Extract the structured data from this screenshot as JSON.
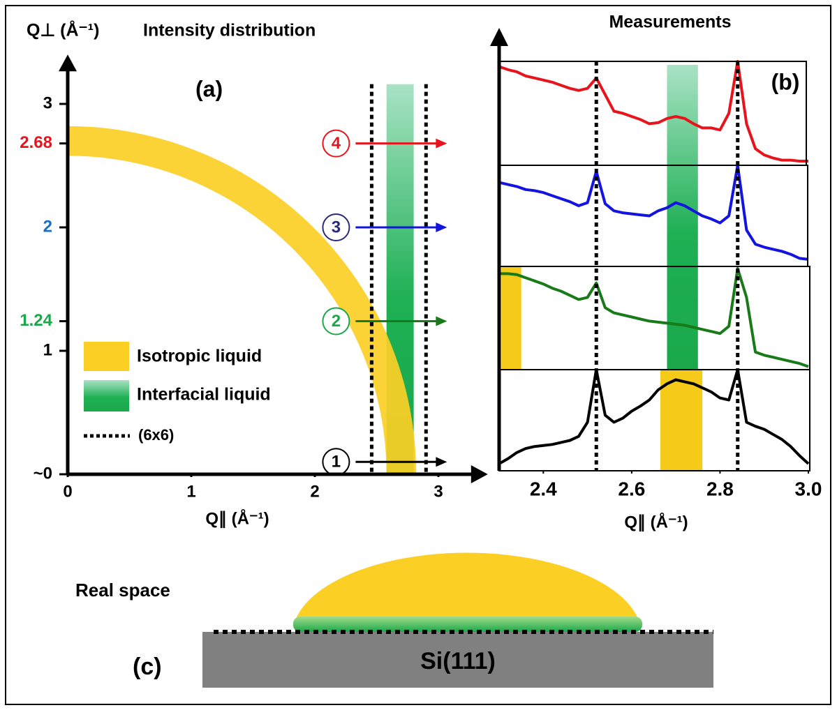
{
  "panel_a": {
    "title": "Intensity distribution",
    "label": "(a)",
    "y_label": "Q⊥ (Å⁻¹)",
    "x_label": "Q∥ (Å⁻¹)",
    "xlim": [
      0,
      3.4
    ],
    "ylim": [
      0,
      3.4
    ],
    "xticks": [
      0,
      1,
      2,
      3
    ],
    "yticks": [
      {
        "value": 0,
        "label": "~0"
      },
      1,
      1.24,
      2,
      2.68,
      3
    ],
    "ytick_colors": [
      "#000000",
      "#000000",
      "#1aa84a",
      "#1a6fc0",
      "#e8141c",
      "#000000"
    ],
    "ring": {
      "inner": 2.58,
      "outer": 2.82,
      "color": "#fccf25"
    },
    "interfacial_band": {
      "xmin": 2.58,
      "xmax": 2.8,
      "ymax": 3.16
    },
    "dotted_lines": [
      2.46,
      2.9
    ],
    "dotted_ymax": 3.16,
    "arrows": [
      {
        "label": "1",
        "y": 0.1,
        "color": "#000000",
        "circle": "#000000"
      },
      {
        "label": "2",
        "y": 1.24,
        "color": "#187a18",
        "circle": "#1aa84a"
      },
      {
        "label": "3",
        "y": 2,
        "color": "#1414e0",
        "circle": "#2a2a7a"
      },
      {
        "label": "4",
        "y": 2.68,
        "color": "#e8141c",
        "circle": "#e8141c"
      }
    ],
    "arrow_xlim": [
      2.33,
      3.07
    ],
    "legend": [
      "Isotropic liquid",
      "Interfacial liquid",
      "(6x6)"
    ]
  },
  "panel_b": {
    "title": "Measurements",
    "label": "(b)",
    "x_label": "Q∥ (Å⁻¹)",
    "xlim": [
      2.3,
      3.0
    ],
    "ylim": [
      0,
      100
    ],
    "xticks": [
      2.4,
      2.6,
      2.8,
      {
        "value": 3.0,
        "label": "3.0"
      }
    ],
    "dotted_lines": [
      2.52,
      2.84
    ],
    "interfacial_band": [
      2.68,
      2.75
    ],
    "x": [
      2.3,
      2.32,
      2.34,
      2.36,
      2.38,
      2.4,
      2.42,
      2.44,
      2.46,
      2.48,
      2.5,
      2.52,
      2.54,
      2.56,
      2.58,
      2.6,
      2.62,
      2.64,
      2.66,
      2.68,
      2.7,
      2.72,
      2.74,
      2.76,
      2.78,
      2.8,
      2.82,
      2.84,
      2.86,
      2.88,
      2.9,
      2.92,
      2.94,
      2.96,
      2.98,
      3.0
    ],
    "series": [
      {
        "color": "#e8141c",
        "values": [
          95,
          92,
          90,
          86,
          84,
          82,
          80,
          77,
          74,
          72,
          74,
          84,
          68,
          52,
          50,
          47,
          44,
          40,
          41,
          45,
          47,
          45,
          40,
          36,
          36,
          34,
          50,
          100,
          40,
          16,
          10,
          7,
          5,
          5,
          4,
          4
        ]
      },
      {
        "color": "#1414e0",
        "values": [
          83,
          81,
          79,
          76,
          75,
          73,
          70,
          67,
          64,
          60,
          63,
          94,
          62,
          55,
          53,
          52,
          51,
          50,
          55,
          58,
          63,
          60,
          55,
          50,
          47,
          43,
          50,
          100,
          36,
          22,
          19,
          17,
          15,
          12,
          8,
          7
        ]
      },
      {
        "color": "#187a18",
        "values": [
          93,
          93,
          92,
          89,
          86,
          83,
          79,
          76,
          72,
          68,
          70,
          84,
          60,
          55,
          53,
          51,
          49,
          47,
          46,
          45,
          44,
          43,
          41,
          39,
          37,
          35,
          42,
          98,
          70,
          17,
          14,
          12,
          10,
          8,
          6,
          3
        ],
        "isotropic_band": [
          2.305,
          2.35
        ]
      },
      {
        "color": "#000000",
        "values": [
          7,
          12,
          18,
          22,
          24,
          25,
          26,
          28,
          30,
          34,
          48,
          100,
          55,
          48,
          52,
          59,
          64,
          70,
          80,
          86,
          90,
          88,
          86,
          82,
          78,
          72,
          70,
          100,
          48,
          44,
          41,
          36,
          31,
          24,
          15,
          7
        ],
        "isotropic_band": [
          2.665,
          2.76
        ]
      }
    ]
  },
  "panel_c": {
    "title": "Real space",
    "label": "(c)",
    "substrate": "Si(111)"
  }
}
